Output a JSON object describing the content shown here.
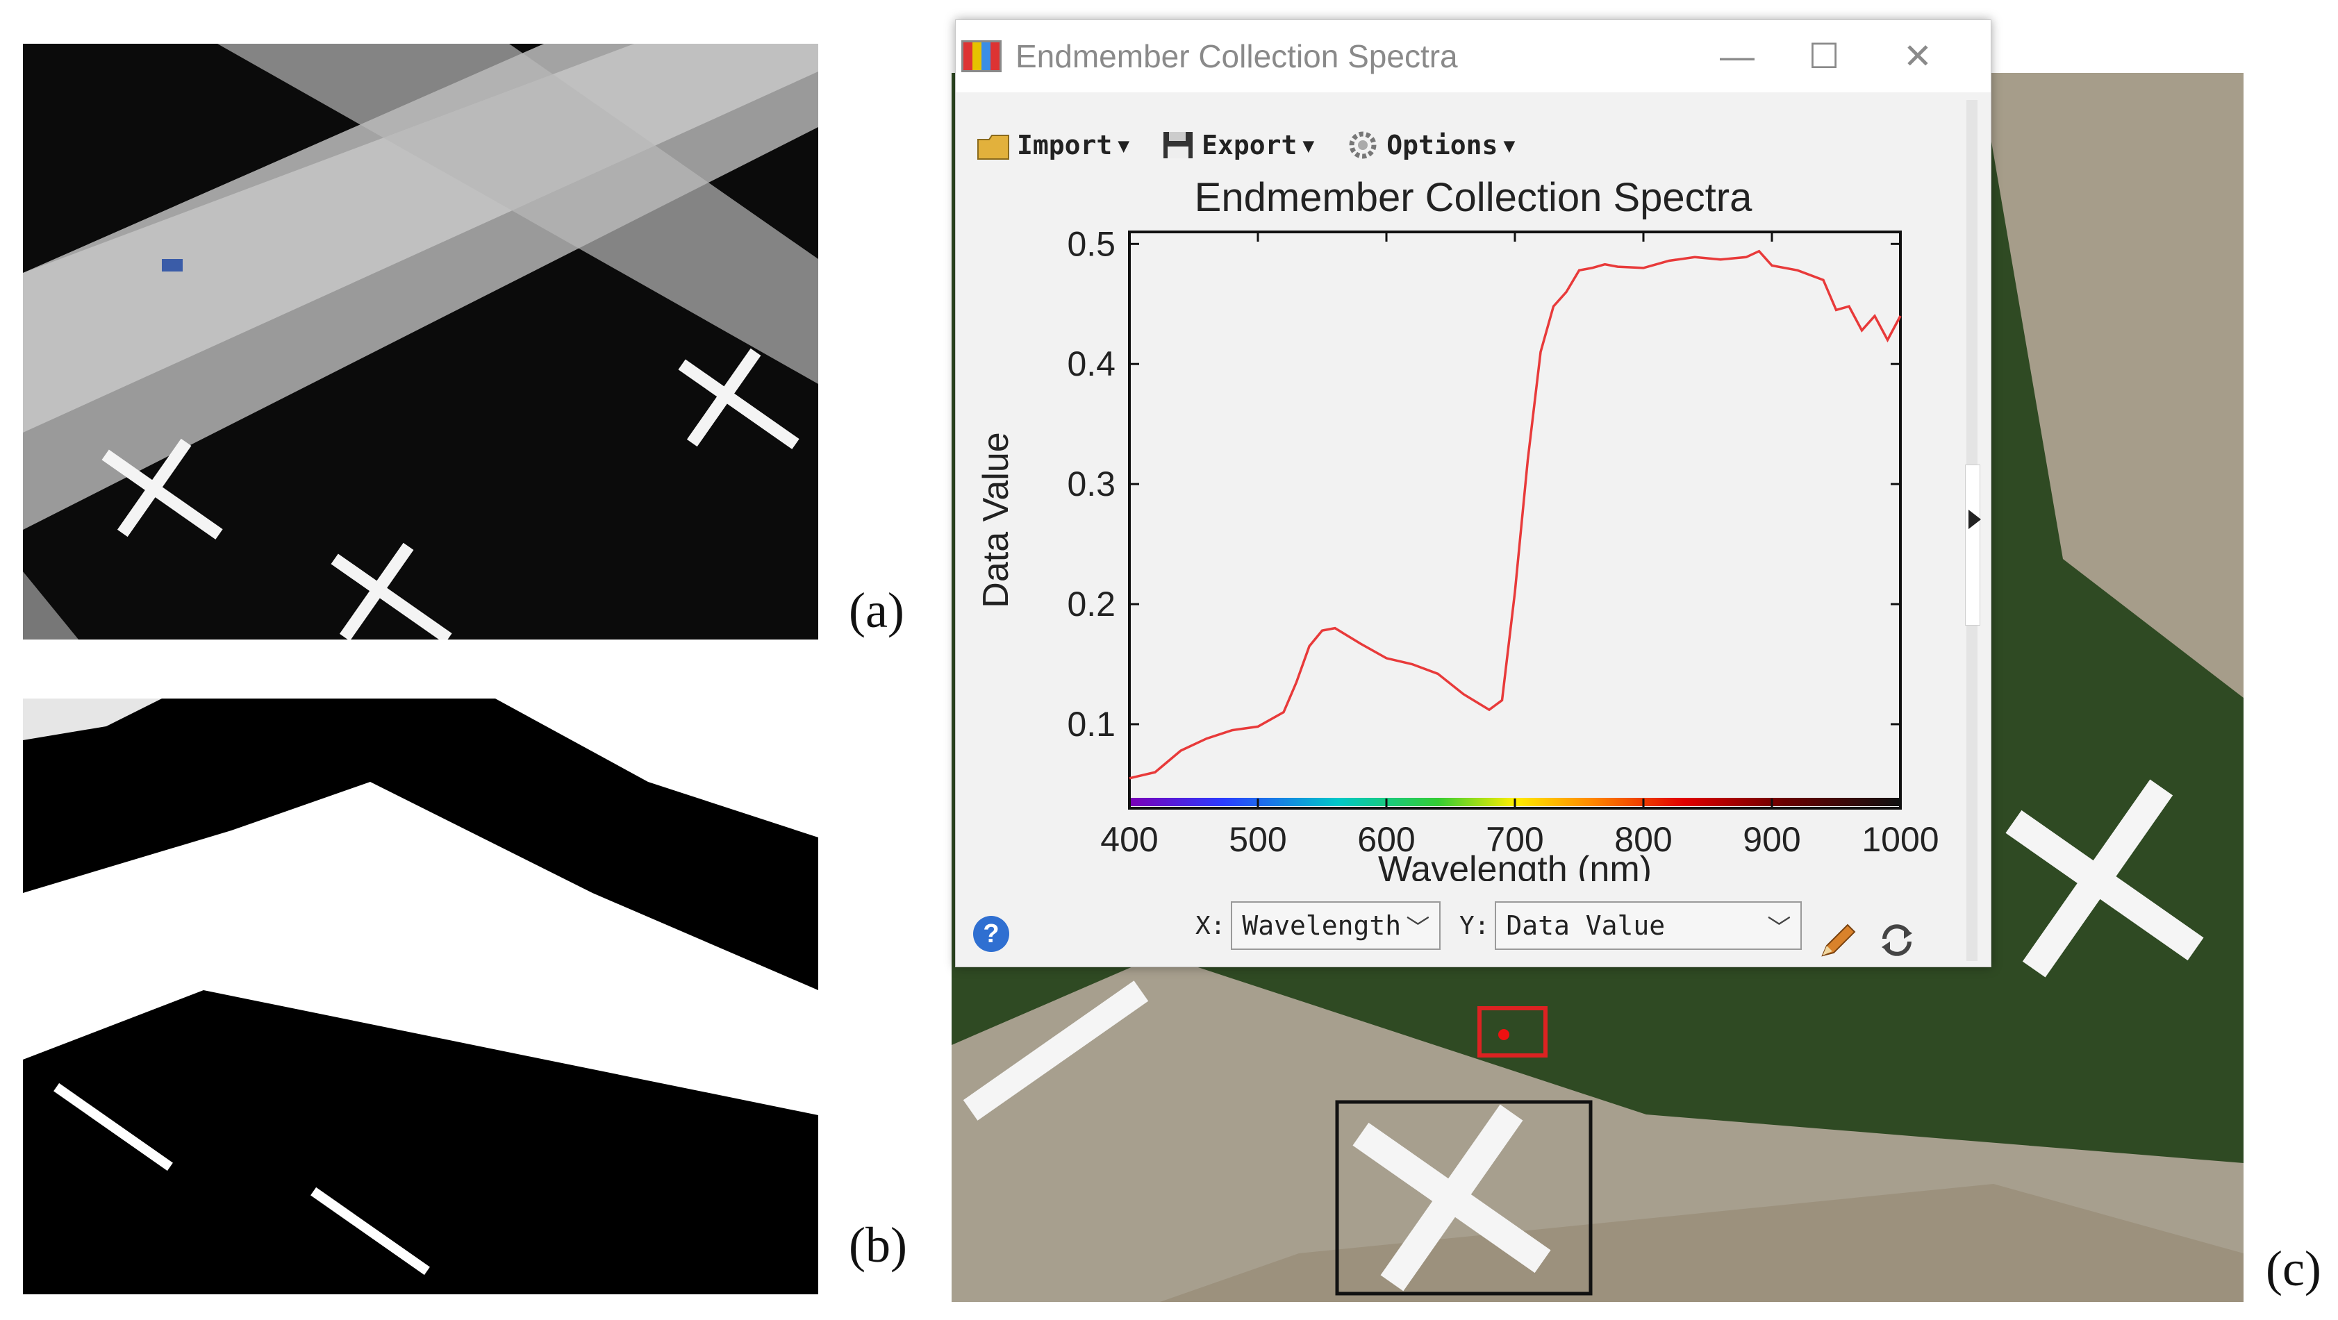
{
  "panels": {
    "a": {
      "label": "(a)"
    },
    "b": {
      "label": "(b)"
    },
    "c": {
      "label": "(c)"
    }
  },
  "window": {
    "title": "Endmember Collection Spectra",
    "controls": {
      "minimize": "—",
      "maximize": "☐",
      "close": "✕"
    },
    "toolbar": {
      "import_label": "Import",
      "export_label": "Export",
      "options_label": "Options"
    },
    "axis_selectors": {
      "x_label": "X:",
      "x_value": "Wavelength",
      "y_label": "Y:",
      "y_value": "Data Value"
    },
    "help_symbol": "?"
  },
  "chart_data": {
    "type": "line",
    "title": "Endmember Collection Spectra",
    "xlabel": "Wavelength (nm)",
    "ylabel": "Data Value",
    "xlim": [
      400,
      1000
    ],
    "ylim": [
      0.03,
      0.51
    ],
    "xticks": [
      400,
      500,
      600,
      700,
      800,
      900,
      1000
    ],
    "yticks": [
      0.1,
      0.2,
      0.3,
      0.4,
      0.5
    ],
    "color": "#e83a3a",
    "x": [
      400,
      420,
      440,
      460,
      480,
      500,
      520,
      530,
      540,
      550,
      560,
      580,
      600,
      620,
      640,
      660,
      680,
      690,
      700,
      710,
      720,
      730,
      740,
      750,
      760,
      770,
      780,
      800,
      820,
      840,
      860,
      880,
      890,
      900,
      920,
      940,
      950,
      960,
      970,
      980,
      990,
      1000
    ],
    "y": [
      0.055,
      0.06,
      0.078,
      0.088,
      0.095,
      0.098,
      0.11,
      0.135,
      0.165,
      0.178,
      0.18,
      0.167,
      0.155,
      0.15,
      0.142,
      0.125,
      0.112,
      0.12,
      0.21,
      0.32,
      0.41,
      0.448,
      0.46,
      0.478,
      0.48,
      0.483,
      0.481,
      0.48,
      0.486,
      0.489,
      0.487,
      0.489,
      0.494,
      0.482,
      0.478,
      0.47,
      0.445,
      0.448,
      0.428,
      0.44,
      0.42,
      0.44
    ]
  }
}
